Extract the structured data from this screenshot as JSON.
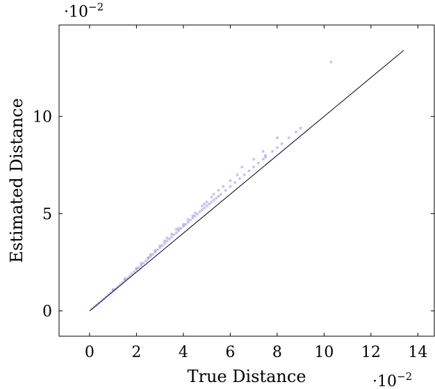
{
  "chart_data": {
    "type": "scatter",
    "title": "",
    "xlabel": "True Distance",
    "ylabel": "Estimated Distance",
    "x_scale_label": {
      "base": "·10",
      "exponent": "−2"
    },
    "y_scale_label": {
      "base": "·10",
      "exponent": "−2"
    },
    "xlim": [
      -1.3,
      14.7
    ],
    "ylim": [
      -1.3,
      14.7
    ],
    "x_ticks": [
      0,
      2,
      4,
      6,
      8,
      10,
      12,
      14
    ],
    "y_ticks": [
      0,
      5,
      10
    ],
    "x_tick_labels": [
      "0",
      "2",
      "4",
      "6",
      "8",
      "10",
      "12",
      "14"
    ],
    "y_tick_labels": [
      "0",
      "5",
      "10"
    ],
    "grid": false,
    "series": [
      {
        "kind": "points",
        "color": "#1a1acc",
        "opacity": 0.25,
        "x": [
          0.1,
          0.2,
          0.3,
          0.4,
          0.5,
          0.6,
          0.7,
          0.8,
          0.9,
          1.0,
          1.1,
          1.2,
          1.3,
          1.4,
          1.5,
          1.6,
          1.7,
          1.8,
          1.9,
          2.0,
          2.1,
          2.2,
          2.3,
          2.4,
          2.5,
          2.6,
          2.7,
          2.8,
          2.9,
          3.0,
          3.1,
          3.2,
          3.3,
          3.4,
          3.5,
          3.6,
          3.7,
          3.8,
          3.9,
          4.0,
          4.1,
          4.2,
          4.3,
          4.4,
          4.5,
          4.6,
          4.7,
          4.8,
          4.9,
          5.0,
          5.1,
          5.2,
          5.3,
          5.4,
          5.5,
          5.6,
          5.8,
          6.0,
          6.2,
          6.4,
          6.6,
          6.8,
          7.0,
          7.2,
          7.4,
          7.5,
          7.8,
          8.0,
          8.2,
          8.5,
          8.8,
          9.0,
          10.3,
          1.0,
          1.5,
          2.0,
          2.5,
          2.8,
          3.0,
          3.2,
          3.5,
          3.7,
          4.0,
          4.2,
          4.5,
          4.8,
          5.0,
          5.2,
          5.5,
          6.0,
          6.3,
          7.0,
          7.4,
          7.5,
          8.0,
          2.2,
          2.6,
          3.3,
          3.8,
          4.4,
          4.9,
          5.3,
          5.7,
          6.5
        ],
        "y": [
          0.1,
          0.2,
          0.3,
          0.4,
          0.5,
          0.6,
          0.72,
          0.82,
          0.92,
          1.03,
          1.13,
          1.24,
          1.35,
          1.46,
          1.57,
          1.68,
          1.79,
          1.9,
          2.01,
          2.12,
          2.23,
          2.34,
          2.46,
          2.57,
          2.68,
          2.8,
          2.91,
          3.02,
          3.14,
          3.25,
          3.36,
          3.47,
          3.58,
          3.7,
          3.8,
          3.92,
          4.02,
          4.13,
          4.24,
          4.35,
          4.45,
          4.56,
          4.67,
          4.78,
          4.88,
          4.98,
          5.1,
          5.2,
          5.3,
          5.4,
          5.5,
          5.6,
          5.7,
          5.8,
          5.9,
          6.0,
          6.2,
          6.4,
          6.6,
          6.8,
          7.0,
          7.2,
          7.4,
          7.6,
          7.8,
          7.9,
          8.2,
          8.4,
          8.6,
          8.9,
          9.2,
          9.4,
          12.8,
          1.1,
          1.65,
          2.2,
          2.75,
          3.1,
          3.35,
          3.6,
          3.95,
          4.2,
          4.45,
          4.7,
          5.05,
          5.4,
          5.6,
          5.85,
          6.2,
          6.7,
          7.0,
          7.8,
          8.2,
          8.0,
          8.9,
          2.45,
          2.9,
          3.75,
          4.25,
          4.9,
          5.5,
          6.0,
          6.4,
          7.4
        ]
      },
      {
        "kind": "line",
        "color": "#000000",
        "x": [
          0,
          13.4
        ],
        "y": [
          0,
          13.4
        ]
      }
    ]
  }
}
